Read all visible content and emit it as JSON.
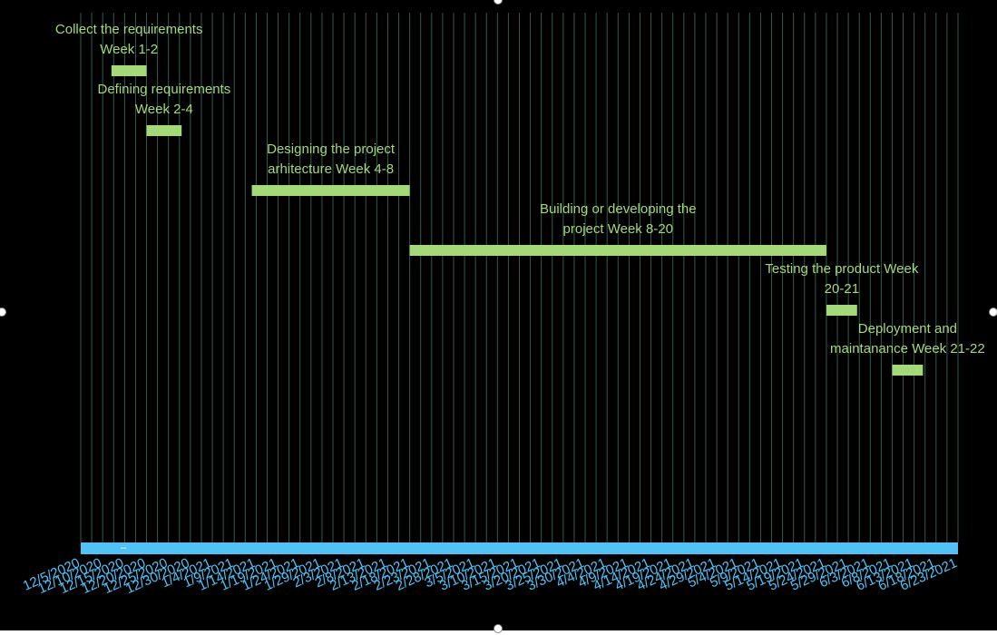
{
  "colors": {
    "background": "#000000",
    "bar": "#a3d977",
    "label_text": "#a3d977",
    "timeline": "#4fc3f7",
    "tick_text": "#4fc3f7",
    "gridline": "#35594a"
  },
  "chart_data": {
    "type": "bar",
    "orientation": "horizontal-gantt",
    "title": "",
    "xlabel": "",
    "ylabel": "",
    "grid": "vertical",
    "legend": "none",
    "timeline_marker": "–",
    "x_ticks": [
      "12/5/2020",
      "12/10/2020",
      "12/15/2020",
      "12/20/2020",
      "12/25/2020",
      "12/30/2020",
      "1/4/2021",
      "1/9/2021",
      "1/14/2021",
      "1/19/2021",
      "1/24/2021",
      "1/29/2021",
      "2/3/2021",
      "2/8/2021",
      "2/13/2021",
      "2/18/2021",
      "2/23/2021",
      "2/28/2021",
      "3/5/2021",
      "3/10/2021",
      "3/15/2021",
      "3/20/2021",
      "3/25/2021",
      "3/30/2021",
      "4/4/2021",
      "4/9/2021",
      "4/14/2021",
      "4/19/2021",
      "4/24/2021",
      "4/29/2021",
      "5/4/2021",
      "5/9/2021",
      "5/14/2021",
      "5/19/2021",
      "5/24/2021",
      "5/29/2021",
      "6/3/2021",
      "6/8/2021",
      "6/13/2021",
      "6/18/2021",
      "6/23/2021"
    ],
    "xlim": [
      "12/5/2020",
      "6/23/2021"
    ],
    "tasks": [
      {
        "label_line1": "Collect the requirements",
        "label_line2": "Week 1-2",
        "start": "12/12/2020",
        "end": "12/20/2020"
      },
      {
        "label_line1": "Defining requirements",
        "label_line2": "Week 2-4",
        "start": "12/20/2020",
        "end": "12/28/2020"
      },
      {
        "label_line1": "Designing the project",
        "label_line2": "arhitecture Week 4-8",
        "start": "1/13/2021",
        "end": "2/18/2021"
      },
      {
        "label_line1": "Building or developing the",
        "label_line2": "project Week 8-20",
        "start": "2/18/2021",
        "end": "5/24/2021"
      },
      {
        "label_line1": "Testing the product Week",
        "label_line2": "20-21",
        "start": "5/24/2021",
        "end": "5/31/2021"
      },
      {
        "label_line1": "Deployment and",
        "label_line2": "maintanance Week 21-22",
        "start": "6/8/2021",
        "end": "6/15/2021"
      }
    ]
  }
}
